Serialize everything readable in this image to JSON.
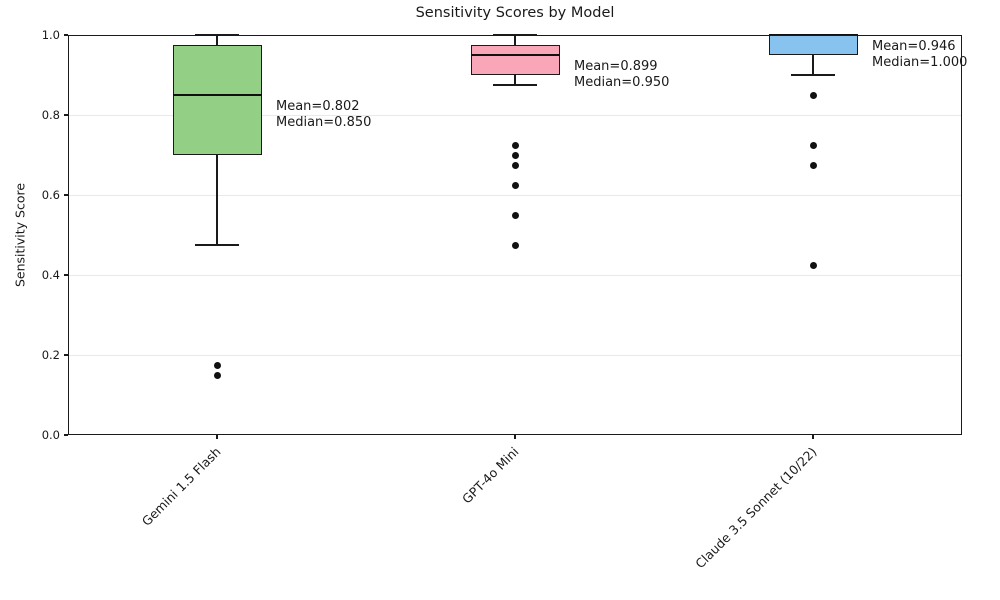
{
  "chart_data": {
    "type": "boxplot",
    "title": "Sensitivity Scores by Model",
    "xlabel": "",
    "ylabel": "Sensitivity Score",
    "ylim": [
      0.0,
      1.0
    ],
    "yticks": [
      0.0,
      0.2,
      0.4,
      0.6,
      0.8,
      1.0
    ],
    "ytick_labels": [
      "0.0",
      "0.2",
      "0.4",
      "0.6",
      "0.8",
      "1.0"
    ],
    "grid": "horizontal-light",
    "legend": "none",
    "categories": [
      "Gemini 1.5 Flash",
      "GPT-4o Mini",
      "Claude 3.5 Sonnet (10/22)"
    ],
    "series": [
      {
        "label": "Gemini 1.5 Flash",
        "box_color": "#93cf85",
        "q1": 0.7,
        "median": 0.85,
        "q3": 0.975,
        "whisker_low": 0.475,
        "whisker_high": 1.0,
        "mean": 0.802,
        "outliers": [
          0.175,
          0.15
        ],
        "annotation_lines": [
          "Mean=0.802",
          "Median=0.850"
        ]
      },
      {
        "label": "GPT-4o Mini",
        "box_color": "#f9a7b8",
        "q1": 0.9,
        "median": 0.95,
        "q3": 0.975,
        "whisker_low": 0.875,
        "whisker_high": 1.0,
        "mean": 0.899,
        "outliers": [
          0.725,
          0.7,
          0.675,
          0.625,
          0.55,
          0.475
        ],
        "annotation_lines": [
          "Mean=0.899",
          "Median=0.950"
        ]
      },
      {
        "label": "Claude 3.5 Sonnet (10/22)",
        "box_color": "#87c3ee",
        "q1": 0.95,
        "median": 1.0,
        "q3": 1.0,
        "whisker_low": 0.9,
        "whisker_high": 1.0,
        "mean": 0.946,
        "outliers": [
          0.85,
          0.725,
          0.675,
          0.425
        ],
        "annotation_lines": [
          "Mean=0.946",
          "Median=1.000"
        ]
      }
    ],
    "colors": {
      "box_edge": "#1a1a1a",
      "median_line": "#111111",
      "whisker": "#1a1a1a",
      "outlier_dot": "#111111",
      "grid": "#e9e9e9",
      "spine": "#1a1a1a",
      "text": "#1a1a1a"
    }
  }
}
